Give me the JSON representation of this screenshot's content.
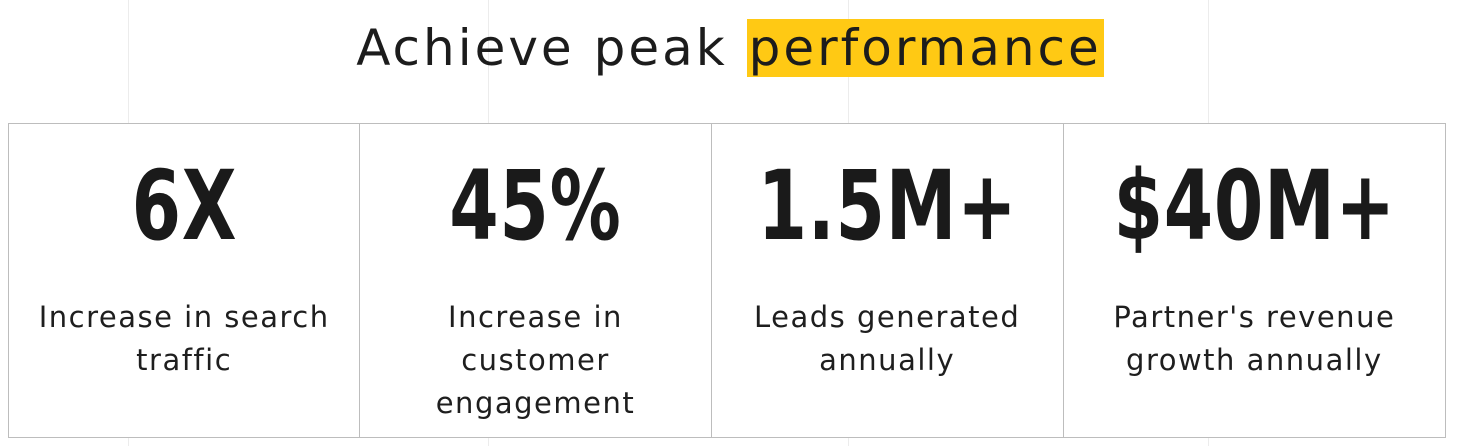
{
  "heading": {
    "prefix": "Achieve peak ",
    "highlight": "performance",
    "highlight_color": "#ffc914"
  },
  "stats": [
    {
      "value": "6X",
      "label": "Increase in search traffic"
    },
    {
      "value": "45%",
      "label": "Increase in customer engagement"
    },
    {
      "value": "1.5M+",
      "label": "Leads generated annually"
    },
    {
      "value": "$40M+",
      "label": "Partner's revenue growth annually"
    }
  ]
}
